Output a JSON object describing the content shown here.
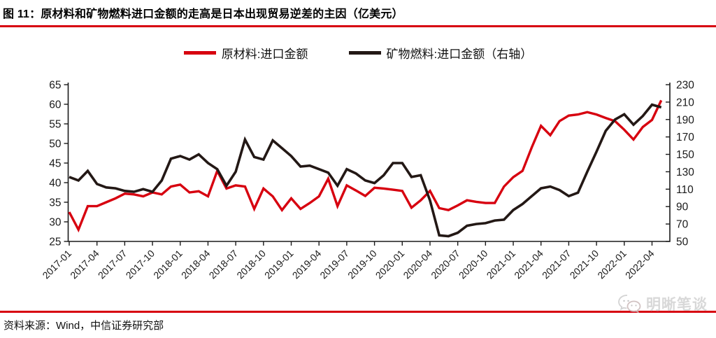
{
  "title": {
    "text": "图 11：原材料和矿物燃料进口金额的走高是日本出现贸易逆差的主因（亿美元）"
  },
  "colors": {
    "accent_red": "#d7000f",
    "series_black": "#231815",
    "axis": "#1a1a1a",
    "watermark_gray": "#d2d2d2"
  },
  "legend": [
    {
      "label": "原材料:进口金额",
      "color": "#d7000f"
    },
    {
      "label": "矿物燃料:进口金额（右轴）",
      "color": "#231815"
    }
  ],
  "footer": {
    "source_label": "资料来源：Wind，中信证券研究部"
  },
  "watermark": {
    "text": "明晰笔谈"
  },
  "chart_data": {
    "type": "line",
    "title": "原材料和矿物燃料进口金额（亿美元）",
    "legend_position": "top-center",
    "grid": false,
    "left_axis": {
      "min": 25,
      "max": 65,
      "ticks": [
        65,
        60,
        55,
        50,
        45,
        40,
        35,
        30,
        25
      ]
    },
    "right_axis": {
      "min": 50,
      "max": 230,
      "ticks": [
        230,
        210,
        190,
        170,
        150,
        130,
        110,
        90,
        70,
        50
      ]
    },
    "x_tick_labels_shown": [
      "2017-01",
      "2017-04",
      "2017-07",
      "2017-10",
      "2018-01",
      "2018-04",
      "2018-07",
      "2018-10",
      "2019-01",
      "2019-04",
      "2019-07",
      "2019-10",
      "2020-01",
      "2020-04",
      "2020-07",
      "2020-10",
      "2021-01",
      "2021-04",
      "2021-07",
      "2021-10",
      "2022-01",
      "2022-04"
    ],
    "months": [
      "2017-01",
      "2017-02",
      "2017-03",
      "2017-04",
      "2017-05",
      "2017-06",
      "2017-07",
      "2017-08",
      "2017-09",
      "2017-10",
      "2017-11",
      "2017-12",
      "2018-01",
      "2018-02",
      "2018-03",
      "2018-04",
      "2018-05",
      "2018-06",
      "2018-07",
      "2018-08",
      "2018-09",
      "2018-10",
      "2018-11",
      "2018-12",
      "2019-01",
      "2019-02",
      "2019-03",
      "2019-04",
      "2019-05",
      "2019-06",
      "2019-07",
      "2019-08",
      "2019-09",
      "2019-10",
      "2019-11",
      "2019-12",
      "2020-01",
      "2020-02",
      "2020-03",
      "2020-04",
      "2020-05",
      "2020-06",
      "2020-07",
      "2020-08",
      "2020-09",
      "2020-10",
      "2020-11",
      "2020-12",
      "2021-01",
      "2021-02",
      "2021-03",
      "2021-04",
      "2021-05",
      "2021-06",
      "2021-07",
      "2021-08",
      "2021-09",
      "2021-10",
      "2021-11",
      "2021-12",
      "2022-01",
      "2022-02",
      "2022-03",
      "2022-04",
      "2022-05"
    ],
    "series": [
      {
        "name": "原材料:进口金额",
        "axis": "left",
        "color": "#d7000f",
        "values": [
          32.5,
          28,
          34,
          34,
          35,
          36,
          37.2,
          37,
          36.5,
          37.5,
          37,
          39,
          39.5,
          37.5,
          37.8,
          36.5,
          43,
          38.5,
          39.3,
          39,
          33.3,
          38.5,
          36.5,
          33,
          36,
          33.3,
          34.8,
          36.5,
          41,
          34,
          39.3,
          38,
          36.6,
          38.7,
          38.5,
          38.2,
          37.9,
          33.6,
          35.5,
          37.9,
          33.5,
          33,
          34.2,
          35.5,
          35.1,
          34.8,
          34.8,
          39,
          41.4,
          43,
          49,
          54.5,
          52.1,
          55.7,
          57.1,
          57.4,
          58,
          57.4,
          56.5,
          55.7,
          53.5,
          51,
          54.2,
          56,
          61
        ]
      },
      {
        "name": "矿物燃料:进口金额（右轴）",
        "axis": "right",
        "color": "#231815",
        "values": [
          124,
          120,
          131,
          116,
          112,
          111,
          108,
          107,
          110,
          107,
          120,
          145,
          148,
          144,
          150,
          140,
          133,
          114,
          130,
          167,
          147,
          144,
          166,
          157,
          148,
          136,
          137,
          133,
          129,
          114,
          133,
          128,
          120,
          117,
          126,
          140,
          140,
          124,
          126,
          97,
          57,
          56,
          60,
          68,
          70,
          71,
          74,
          75,
          86,
          93,
          102,
          111,
          113,
          109,
          102,
          106,
          130,
          153,
          177,
          190,
          196,
          184,
          194,
          207,
          204
        ]
      }
    ]
  }
}
